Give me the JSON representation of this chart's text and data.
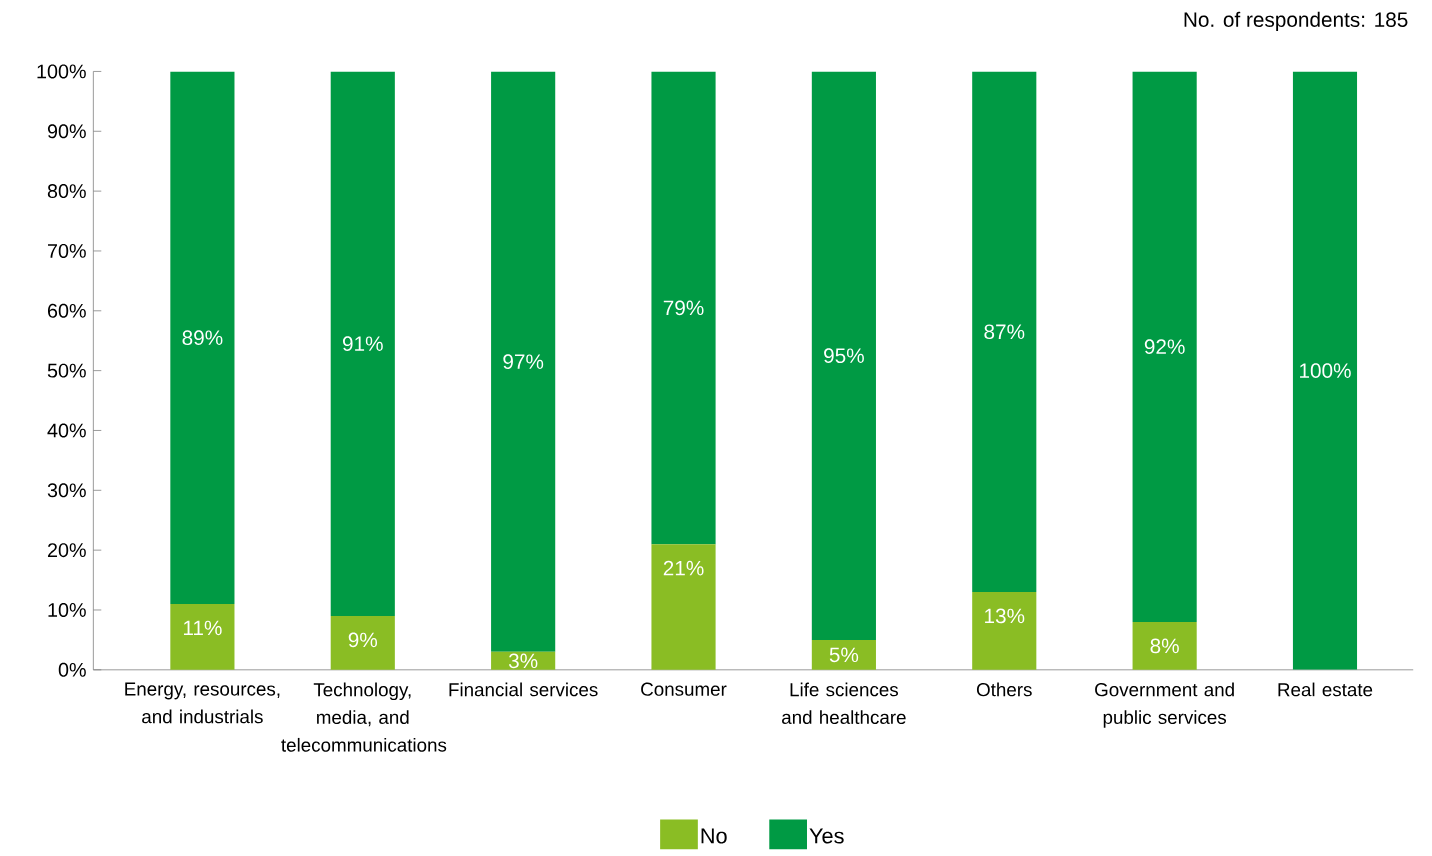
{
  "chart_data": {
    "type": "bar",
    "stacked": true,
    "categories": [
      "Energy, resources, and industrials",
      "Technology, media, and telecommunications",
      "Financial services",
      "Consumer",
      "Life sciences and healthcare",
      "Others",
      "Government and public services",
      "Real estate"
    ],
    "series": [
      {
        "name": "No",
        "color": "#8abd24",
        "values": [
          11,
          9,
          3,
          21,
          5,
          13,
          8,
          0
        ],
        "value_labels": [
          "11%",
          "9%",
          "3%",
          "21%",
          "5%",
          "13%",
          "8%",
          null
        ]
      },
      {
        "name": "Yes",
        "color": "#009a44",
        "values": [
          89,
          91,
          97,
          79,
          95,
          87,
          92,
          100
        ],
        "value_labels": [
          "89%",
          "91%",
          "97%",
          "79%",
          "95%",
          "87%",
          "92%",
          "100%"
        ]
      }
    ],
    "ylim": [
      0,
      100
    ],
    "yticks": [
      {
        "value": 0,
        "label": "0%"
      },
      {
        "value": 10,
        "label": "10%"
      },
      {
        "value": 20,
        "label": "20%"
      },
      {
        "value": 30,
        "label": "30%"
      },
      {
        "value": 40,
        "label": "40%"
      },
      {
        "value": 50,
        "label": "50%"
      },
      {
        "value": 60,
        "label": "60%"
      },
      {
        "value": 70,
        "label": "70%"
      },
      {
        "value": 80,
        "label": "80%"
      },
      {
        "value": 90,
        "label": "90%"
      },
      {
        "value": 100,
        "label": "100%"
      }
    ],
    "legend": "bottom",
    "annotations": [
      "No. of respondents: 185"
    ]
  }
}
